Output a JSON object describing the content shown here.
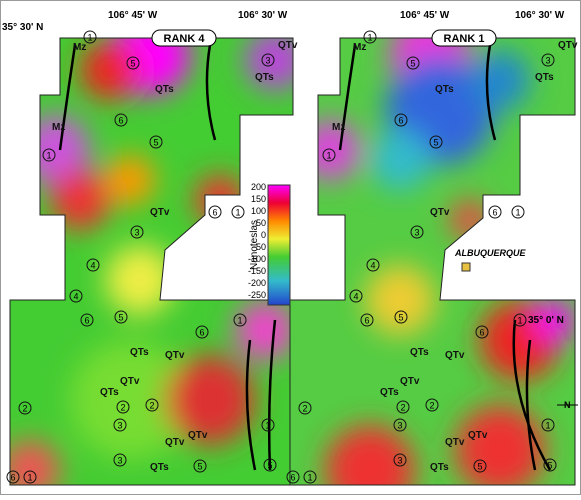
{
  "coords": {
    "lon_left_a": "106° 45' W",
    "lon_left_b": "106° 30' W",
    "lat_top": "35° 30' N",
    "lon_right_a": "106° 45' W",
    "lon_right_b": "106° 30' W",
    "lat_mid": "35° 0' N"
  },
  "panels": [
    {
      "title": "RANK 4",
      "units": [
        "Mz",
        "Mz",
        "QTs",
        "QTv",
        "QTs",
        "QTv",
        "QTs",
        "QTv",
        "QTs",
        "QTv",
        "QTv",
        "QTv",
        "QTs"
      ],
      "circled": [
        "1",
        "5",
        "3",
        "6",
        "5",
        "1",
        "6",
        "1",
        "3",
        "4",
        "4",
        "6",
        "5",
        "6",
        "1",
        "2",
        "2",
        "2",
        "3",
        "3",
        "5",
        "1",
        "5",
        "1",
        "6"
      ]
    },
    {
      "title": "RANK 1",
      "units": [
        "Mz",
        "Mz",
        "QTs",
        "QTv",
        "QTs",
        "QTv",
        "QTs",
        "QTv",
        "QTs",
        "QTv",
        "QTv",
        "QTv",
        "QTs"
      ],
      "circled": [
        "1",
        "5",
        "3",
        "6",
        "5",
        "1",
        "6",
        "1",
        "3",
        "4",
        "4",
        "6",
        "5",
        "6",
        "1",
        "2",
        "2",
        "2",
        "3",
        "3",
        "5",
        "1",
        "5",
        "1",
        "6"
      ]
    }
  ],
  "colorbar": {
    "label": "Nanoteslas",
    "ticks": [
      "200",
      "150",
      "100",
      "50",
      "0",
      "-50",
      "-100",
      "-150",
      "-200",
      "-250"
    ]
  },
  "city": "ALBUQUERQUE",
  "north": "N"
}
